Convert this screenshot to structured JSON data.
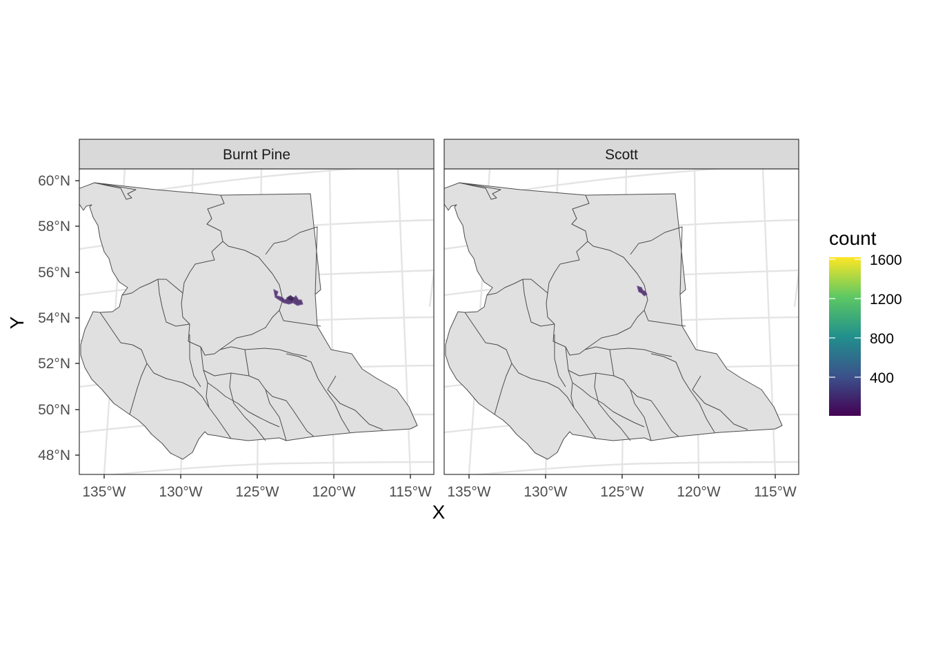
{
  "axes": {
    "x_title": "X",
    "y_title": "Y",
    "x_ticks": [
      "135°W",
      "130°W",
      "125°W",
      "120°W",
      "115°W"
    ],
    "y_ticks": [
      "60°N",
      "58°N",
      "56°N",
      "54°N",
      "52°N",
      "50°N",
      "48°N"
    ]
  },
  "panels": [
    {
      "title": "Burnt Pine",
      "cluster": "large"
    },
    {
      "title": "Scott",
      "cluster": "small"
    }
  ],
  "legend": {
    "title": "count",
    "labels": [
      "1600",
      "1200",
      "800",
      "400"
    ],
    "palette": "viridis",
    "colors": [
      "#440154",
      "#3b528b",
      "#21908c",
      "#5dc863",
      "#fde725"
    ],
    "range": [
      0,
      1700
    ]
  },
  "colors": {
    "land": "#e0e0e0",
    "border": "#4a4a4a",
    "strip": "#d9d9d9",
    "graticule": "#e4e4e4",
    "occurrence": "#4b2e6b"
  }
}
